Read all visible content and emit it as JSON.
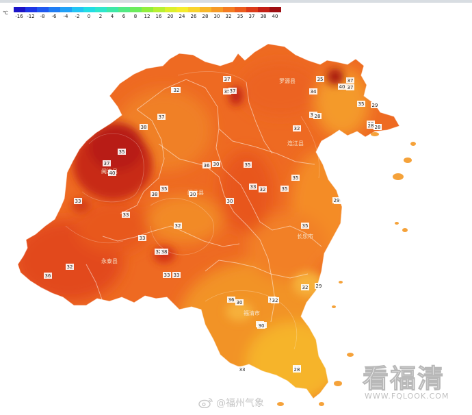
{
  "legend": {
    "unit": "℃",
    "ticks": [
      "-16",
      "-12",
      "-8",
      "-6",
      "-4",
      "-2",
      "0",
      "2",
      "4",
      "6",
      "8",
      "12",
      "16",
      "20",
      "24",
      "26",
      "28",
      "30",
      "32",
      "35",
      "37",
      "38",
      "40"
    ],
    "colors": [
      "#1b14c8",
      "#1d36e6",
      "#1e58f0",
      "#1f7cf4",
      "#20a0f6",
      "#23c4f4",
      "#22dde4",
      "#2ee6cc",
      "#3ee8a8",
      "#52ea84",
      "#6cec5c",
      "#92ee3c",
      "#b8f032",
      "#dcf02c",
      "#f4ec2c",
      "#f8d42c",
      "#f8b82a",
      "#f69a26",
      "#f47c22",
      "#ec5c1e",
      "#dc3c1a",
      "#c42016",
      "#9e0e12"
    ]
  },
  "map": {
    "counties": [
      "罗源县",
      "连江县",
      "闽清县",
      "闽侯县",
      "永泰县",
      "长乐市",
      "福清市"
    ],
    "values": [
      "37",
      "35",
      "37",
      "32",
      "34",
      "35",
      "37",
      "40",
      "37",
      "32",
      "37",
      "38",
      "35",
      "32",
      "32",
      "35",
      "36",
      "37",
      "35",
      "30",
      "32",
      "35",
      "33",
      "35",
      "32",
      "38",
      "35",
      "33",
      "40",
      "33",
      "30",
      "29",
      "35",
      "32",
      "33",
      "32",
      "32",
      "36",
      "33",
      "36",
      "35",
      "30",
      "32",
      "33",
      "38",
      "32",
      "29",
      "33",
      "33",
      "30",
      "30",
      "28",
      "28",
      "29",
      "30",
      "29",
      "28",
      "33",
      "30",
      "28"
    ]
  },
  "watermark": {
    "text": "看福清",
    "url": "WWW.FQLOOK.COM"
  },
  "source": {
    "handle": "@福州气象",
    "icon": "weibo-icon"
  }
}
